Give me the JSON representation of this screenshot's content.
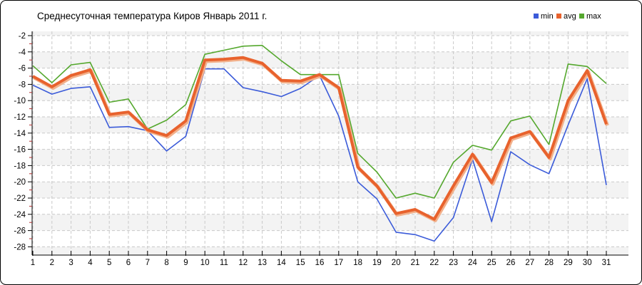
{
  "chart_data": {
    "type": "line",
    "title": "Среднесуточная температура Киров  Январь 2011 г.",
    "xlabel": "",
    "ylabel": "",
    "xlim": [
      1,
      31
    ],
    "ylim": [
      -28,
      -2
    ],
    "x": [
      1,
      2,
      3,
      4,
      5,
      6,
      7,
      8,
      9,
      10,
      11,
      12,
      13,
      14,
      15,
      16,
      17,
      18,
      19,
      20,
      21,
      22,
      23,
      24,
      25,
      26,
      27,
      28,
      29,
      30,
      31
    ],
    "y_ticks": [
      -2,
      -4,
      -6,
      -8,
      -10,
      -12,
      -14,
      -16,
      -18,
      -20,
      -22,
      -24,
      -26,
      -28
    ],
    "grid": "dashed",
    "legend_position": "top-right",
    "series": [
      {
        "name": "min",
        "color": "#3b5bd9",
        "values": [
          -8.1,
          -9.2,
          -8.5,
          -8.3,
          -13.3,
          -13.2,
          -13.7,
          -16.2,
          -14.4,
          -6.1,
          -6.1,
          -8.4,
          -8.9,
          -9.5,
          -8.5,
          -6.9,
          -11.9,
          -20.0,
          -22.1,
          -26.2,
          -26.5,
          -27.3,
          -24.4,
          -17.2,
          -24.9,
          -16.3,
          -17.9,
          -19.0,
          -13.0,
          -7.3,
          -20.4
        ]
      },
      {
        "name": "avg",
        "color": "#e8622d",
        "values": [
          -7.0,
          -8.3,
          -6.9,
          -6.2,
          -11.7,
          -11.4,
          -13.6,
          -14.3,
          -12.5,
          -5.0,
          -4.9,
          -4.7,
          -5.4,
          -7.5,
          -7.6,
          -6.8,
          -8.4,
          -18.2,
          -20.5,
          -23.9,
          -23.4,
          -24.6,
          -20.5,
          -16.6,
          -20.1,
          -14.6,
          -13.8,
          -17.0,
          -10.0,
          -6.3,
          -12.9
        ]
      },
      {
        "name": "max",
        "color": "#55a82e",
        "values": [
          -5.7,
          -7.8,
          -5.6,
          -5.3,
          -10.2,
          -9.8,
          -13.5,
          -12.4,
          -10.5,
          -4.3,
          -3.8,
          -3.3,
          -3.2,
          -5.1,
          -6.8,
          -6.8,
          -6.8,
          -16.5,
          -18.8,
          -22.0,
          -21.4,
          -22.0,
          -17.6,
          -15.5,
          -16.1,
          -12.5,
          -11.9,
          -15.4,
          -5.5,
          -5.8,
          -7.9
        ]
      }
    ],
    "colors": {
      "band_white": "#ffffff",
      "band_gray": "#f3f3f3",
      "gridline": "#c9c9c9",
      "axis": "#000000",
      "minor_tick": "#b03030",
      "avg_halo": "#f2b08a",
      "border": "#000000"
    }
  }
}
